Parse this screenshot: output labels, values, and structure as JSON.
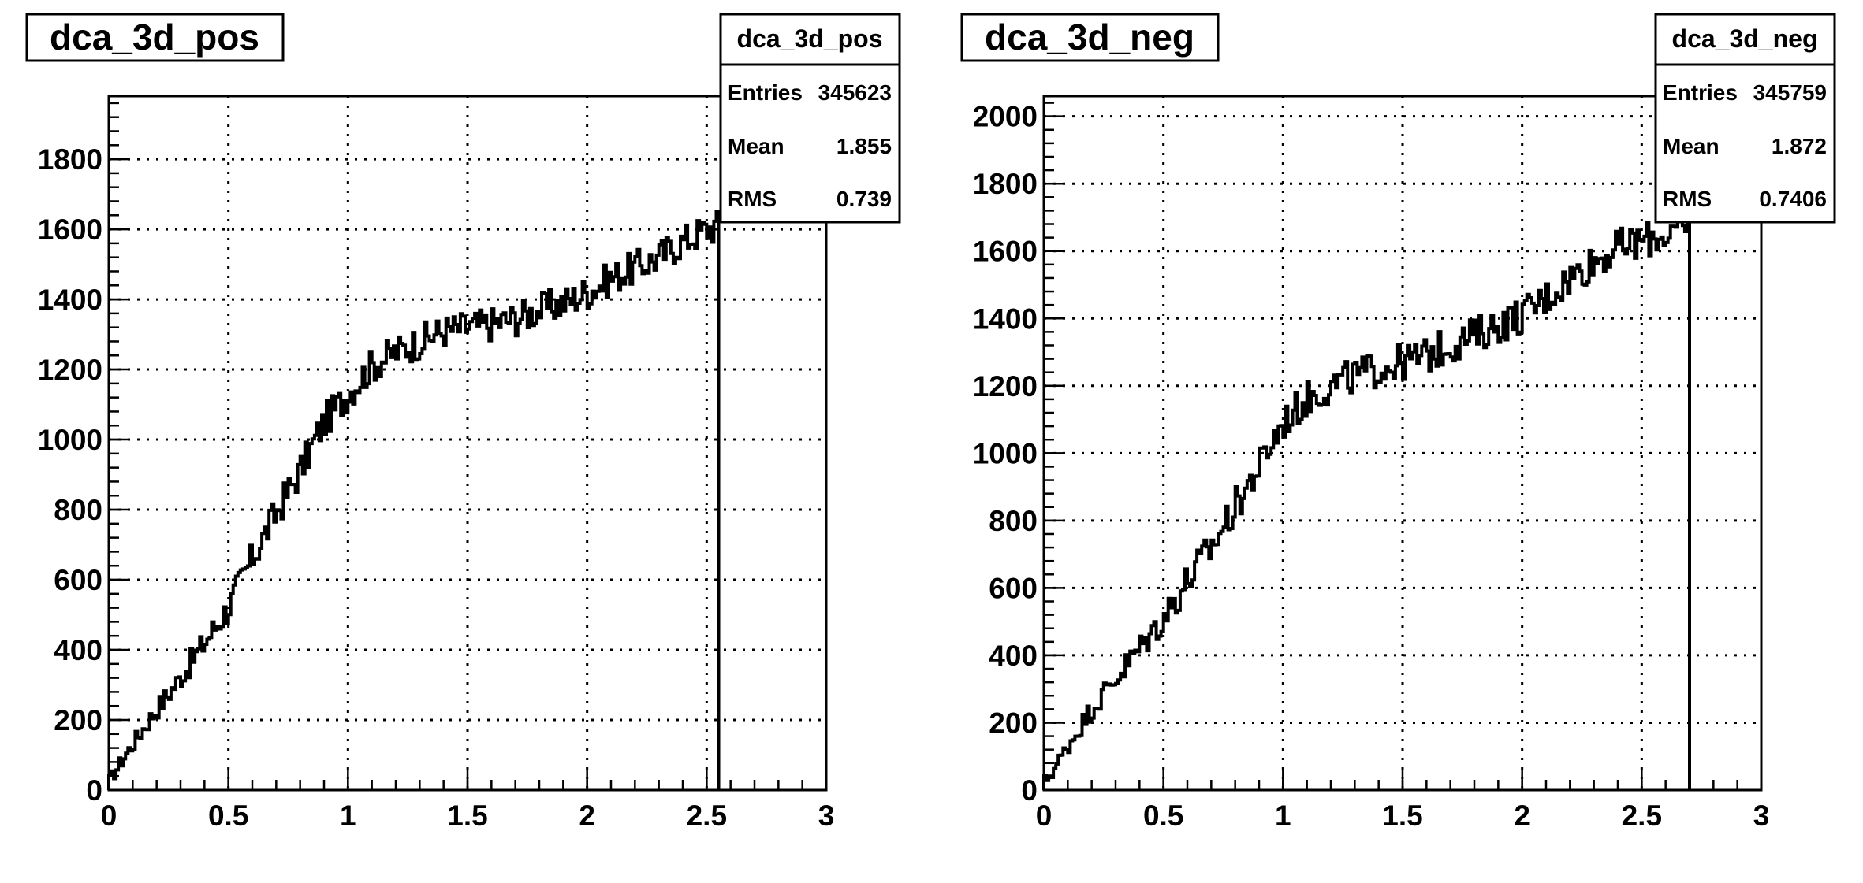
{
  "chart_data": [
    {
      "type": "histogram",
      "title": "dca_3d_pos",
      "xlabel": "",
      "ylabel": "",
      "xlim": [
        0,
        3
      ],
      "ylim": [
        0,
        1980
      ],
      "xticks": [
        "0",
        "0.5",
        "1",
        "1.5",
        "2",
        "2.5",
        "3"
      ],
      "yticks": [
        "0",
        "200",
        "400",
        "600",
        "800",
        "1000",
        "1200",
        "1400",
        "1600",
        "1800"
      ],
      "grid": true,
      "stats": {
        "name": "dca_3d_pos",
        "entries_label": "Entries",
        "entries": "345623",
        "mean_label": "Mean",
        "mean": "1.855",
        "rms_label": "RMS",
        "rms": "0.739"
      },
      "bin_width": 0.01,
      "x_end": 2.55,
      "curve_x": [
        0.0,
        0.05,
        0.1,
        0.2,
        0.3,
        0.4,
        0.5,
        0.6,
        0.7,
        0.8,
        0.9,
        1.0,
        1.1,
        1.2,
        1.3,
        1.4,
        1.5,
        1.6,
        1.7,
        1.8,
        1.9,
        2.0,
        2.1,
        2.2,
        2.3,
        2.4,
        2.5,
        2.55
      ],
      "curve_y": [
        20,
        80,
        130,
        230,
        320,
        420,
        520,
        660,
        790,
        910,
        1050,
        1130,
        1210,
        1250,
        1280,
        1310,
        1320,
        1330,
        1345,
        1370,
        1390,
        1420,
        1460,
        1490,
        1520,
        1565,
        1600,
        1610
      ],
      "noise": 50
    },
    {
      "type": "histogram",
      "title": "dca_3d_neg",
      "xlabel": "",
      "ylabel": "",
      "xlim": [
        0,
        3
      ],
      "ylim": [
        0,
        2060
      ],
      "xticks": [
        "0",
        "0.5",
        "1",
        "1.5",
        "2",
        "2.5",
        "3"
      ],
      "yticks": [
        "0",
        "200",
        "400",
        "600",
        "800",
        "1000",
        "1200",
        "1400",
        "1600",
        "1800",
        "2000"
      ],
      "grid": true,
      "stats": {
        "name": "dca_3d_neg",
        "entries_label": "Entries",
        "entries": "345759",
        "mean_label": "Mean",
        "mean": "1.872",
        "rms_label": "RMS",
        "rms": "0.7406"
      },
      "bin_width": 0.01,
      "x_end": 2.7,
      "curve_x": [
        0.0,
        0.05,
        0.1,
        0.2,
        0.3,
        0.4,
        0.5,
        0.6,
        0.7,
        0.8,
        0.9,
        1.0,
        1.1,
        1.2,
        1.3,
        1.4,
        1.5,
        1.6,
        1.7,
        1.8,
        1.9,
        2.0,
        2.1,
        2.2,
        2.3,
        2.4,
        2.5,
        2.6,
        2.7
      ],
      "curve_y": [
        20,
        70,
        130,
        240,
        330,
        420,
        510,
        620,
        720,
        840,
        960,
        1090,
        1160,
        1200,
        1230,
        1250,
        1270,
        1290,
        1320,
        1350,
        1380,
        1410,
        1460,
        1520,
        1570,
        1610,
        1630,
        1650,
        1670
      ],
      "noise": 55
    }
  ]
}
